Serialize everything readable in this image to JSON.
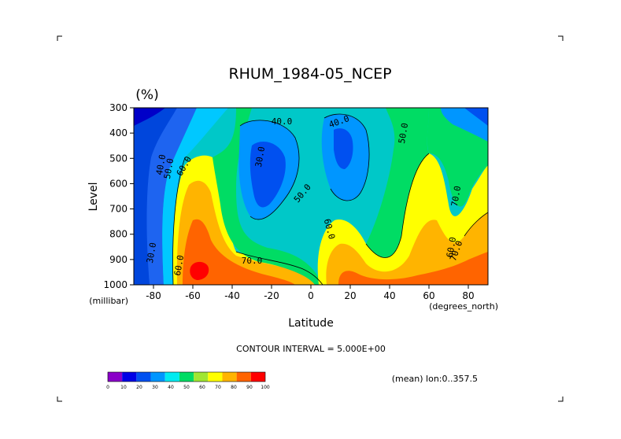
{
  "chart_data": {
    "type": "heatmap",
    "title": "RHUM_1984-05_NCEP",
    "units": "(%)",
    "xlabel": "Latitude",
    "ylabel": "Level",
    "x_units": "(degrees_north)",
    "y_units": "(millibar)",
    "xlim": [
      -90,
      90
    ],
    "ylim": [
      1000,
      300
    ],
    "x_ticks": [
      "-80",
      "-60",
      "-40",
      "-20",
      "0",
      "20",
      "40",
      "60",
      "80"
    ],
    "y_ticks": [
      "300",
      "400",
      "500",
      "600",
      "700",
      "800",
      "900",
      "1000"
    ],
    "note": "CONTOUR INTERVAL = 5.000E+00",
    "mean_note": "(mean) lon:0..357.5",
    "contour_labels": [
      "40.0",
      "40.0",
      "50.0",
      "30.0",
      "40.0",
      "50.0",
      "60.0",
      "50.0",
      "60.0",
      "70.0",
      "30.0",
      "60.0",
      "70.0",
      "60.0",
      "70.0"
    ],
    "colorbar": {
      "ticks": [
        "0",
        "10",
        "20",
        "30",
        "40",
        "50",
        "60",
        "70",
        "80",
        "90",
        "100"
      ],
      "colors": [
        "#8a00c8",
        "#0000e6",
        "#0050f0",
        "#0096ff",
        "#00ebf0",
        "#00dc64",
        "#a0e632",
        "#ffff00",
        "#ffb400",
        "#ff6400",
        "#ff0000"
      ]
    }
  }
}
